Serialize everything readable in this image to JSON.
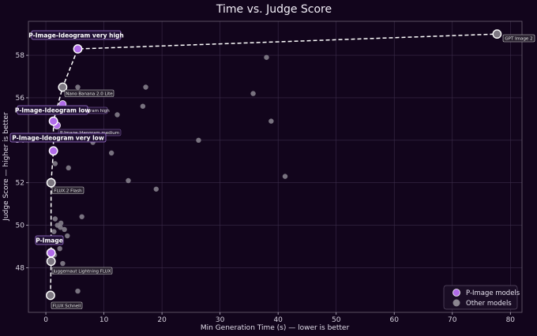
{
  "chart_data": {
    "type": "scatter",
    "title": "Time vs. Judge Score",
    "xlabel": "Min Generation Time (s) — lower is better",
    "ylabel": "Judge Score — higher is better",
    "xlim": [
      -3,
      82
    ],
    "ylim": [
      45.9,
      59.6
    ],
    "xticks": [
      0,
      10,
      20,
      30,
      40,
      50,
      60,
      70,
      80
    ],
    "yticks": [
      48,
      50,
      52,
      54,
      56,
      58
    ],
    "grid": true,
    "legend_position": "bottom-right",
    "legend": [
      "P-Image models",
      "Other models"
    ],
    "colors": {
      "background": "#12051c",
      "pimage": "#b06be8",
      "pimage_text": "#c7b3e6",
      "other": "#8b8690",
      "frontier": "#ffffff",
      "grid": "#3b2c4a"
    },
    "frontier": [
      [
        0.8,
        46.7
      ],
      [
        0.9,
        48.3
      ],
      [
        0.9,
        48.7
      ],
      [
        0.9,
        52.0
      ],
      [
        1.3,
        53.5
      ],
      [
        1.3,
        54.9
      ],
      [
        2.9,
        56.5
      ],
      [
        5.5,
        58.3
      ],
      [
        77.7,
        59.0
      ]
    ],
    "other_points": [
      [
        0.8,
        46.7
      ],
      [
        0.9,
        48.3
      ],
      [
        0.9,
        52.0
      ],
      [
        2.9,
        56.5
      ],
      [
        77.7,
        59.0
      ],
      [
        5.5,
        46.9
      ],
      [
        2.9,
        48.2
      ],
      [
        1.5,
        48.6
      ],
      [
        2.4,
        48.9
      ],
      [
        1.9,
        49.2
      ],
      [
        3.7,
        49.5
      ],
      [
        1.4,
        49.7
      ],
      [
        2.5,
        49.9
      ],
      [
        3.2,
        49.8
      ],
      [
        2.0,
        50.0
      ],
      [
        2.6,
        50.1
      ],
      [
        1.6,
        50.3
      ],
      [
        6.2,
        50.4
      ],
      [
        4.7,
        51.6
      ],
      [
        19.0,
        51.7
      ],
      [
        14.2,
        52.1
      ],
      [
        3.9,
        52.7
      ],
      [
        1.6,
        52.9
      ],
      [
        41.2,
        52.3
      ],
      [
        11.3,
        53.4
      ],
      [
        8.1,
        53.9
      ],
      [
        26.3,
        54.0
      ],
      [
        38.8,
        54.9
      ],
      [
        12.3,
        55.2
      ],
      [
        16.7,
        55.6
      ],
      [
        35.7,
        56.2
      ],
      [
        5.5,
        56.5
      ],
      [
        17.2,
        56.5
      ],
      [
        38.0,
        57.9
      ]
    ],
    "pimage_points": [
      [
        0.9,
        48.7
      ],
      [
        1.3,
        53.5
      ],
      [
        1.3,
        54.9
      ],
      [
        1.9,
        54.7
      ],
      [
        2.9,
        55.7
      ],
      [
        5.5,
        58.3
      ]
    ],
    "annotations": [
      {
        "text": "P-Image-Ideogram very high",
        "style": "pimage-big"
      },
      {
        "text": "GPT Image 2",
        "style": "small"
      },
      {
        "text": "Nano Banana 2.0 Lite",
        "style": "small"
      },
      {
        "text": "P-Image-Ideogram high",
        "style": "small"
      },
      {
        "text": "P-Image-Ideogram low",
        "style": "pimage-big"
      },
      {
        "text": "P-Image-Ideogram medium",
        "style": "small"
      },
      {
        "text": "P-Image-Ideogram very low",
        "style": "pimage-big"
      },
      {
        "text": "FLUX.2 Flash",
        "style": "small"
      },
      {
        "text": "P-Image",
        "style": "pimage-big"
      },
      {
        "text": "Juggernaut Lightning FLUX",
        "style": "small"
      },
      {
        "text": "FLUX Schnell",
        "style": "small"
      }
    ]
  }
}
